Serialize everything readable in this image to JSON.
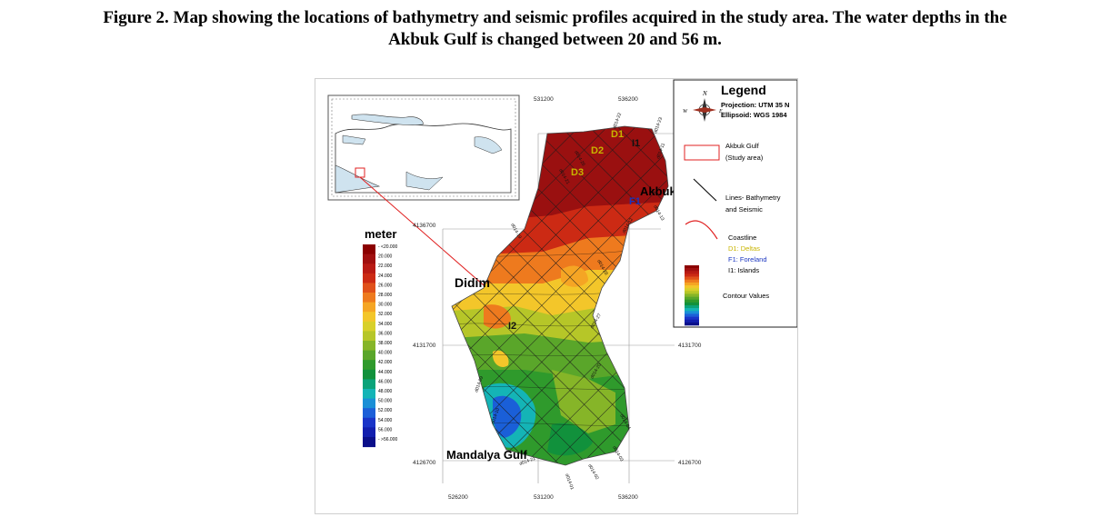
{
  "caption": {
    "line1": "Figure 2. Map showing the locations of bathymetry and seismic profiles acquired in the study area. The water depths in the",
    "line2": "Akbuk Gulf is changed between 20 and 56 m."
  },
  "map": {
    "scale_title": "meter",
    "scale_labels": [
      "- <20.000",
      "20.000",
      "22.000",
      "24.000",
      "26.000",
      "28.000",
      "30.000",
      "32.000",
      "34.000",
      "36.000",
      "38.000",
      "40.000",
      "42.000",
      "44.000",
      "46.000",
      "48.000",
      "50.000",
      "52.000",
      "54.000",
      "56.000",
      "- >56.000"
    ],
    "scale_colors": [
      "#8b0000",
      "#a00f0f",
      "#b81a14",
      "#cc2a14",
      "#e0501a",
      "#ee7a1e",
      "#f5a524",
      "#f3c62a",
      "#d8d02a",
      "#b6c628",
      "#86b528",
      "#5aa62a",
      "#2f9a2c",
      "#11913c",
      "#0aa37a",
      "#14b4b6",
      "#1a8fd6",
      "#1c5fd8",
      "#1a34c8",
      "#121eae",
      "#0a0f8a"
    ],
    "top_easting": [
      "531200",
      "536200"
    ],
    "bottom_easting": [
      "526200",
      "531200",
      "536200"
    ],
    "northing_left": [
      "4136700",
      "4131700",
      "4126700"
    ],
    "northing_right": [
      "4131700",
      "4126700"
    ],
    "place_names": {
      "didim": "Didim",
      "akbuk": "Akbuk",
      "mandalya": "Mandalya Gulf"
    },
    "feature_labels": {
      "d1": "D1",
      "d2": "D2",
      "d3": "D3",
      "f1": "F1",
      "i1": "I1",
      "i2": "I2"
    },
    "profile_labels": [
      "d014-21",
      "d014-26",
      "d014-20",
      "d014-19",
      "d014-12",
      "d014-11",
      "d014-13",
      "d014-09",
      "d014-27",
      "d014-28",
      "d014-10",
      "d014-02",
      "d014-03",
      "d014-04",
      "d014-01",
      "d014-22",
      "d014-23",
      "d014-25"
    ]
  },
  "legend": {
    "title": "Legend",
    "projection": "Projection: UTM 35 N",
    "ellipsoid": "Ellipsoid: WGS 1984",
    "compass": {
      "n": "N",
      "w": "W",
      "e": "E"
    },
    "items": {
      "gulf1": "Akbuk Gulf",
      "gulf2": "(Study area)",
      "lines1": "Lines- Bathymetry",
      "lines2": "and Seismic",
      "coast": "Coastline",
      "deltas": "D1: Deltas",
      "foreland": "F1: Foreland",
      "islands": "I1: Islands",
      "contour": "Contour Values"
    },
    "colors": {
      "gulf_box": "#e02020",
      "coastline": "#e02020",
      "deltas": "#c8b400",
      "foreland": "#1a35c0",
      "islands": "#000000"
    }
  }
}
